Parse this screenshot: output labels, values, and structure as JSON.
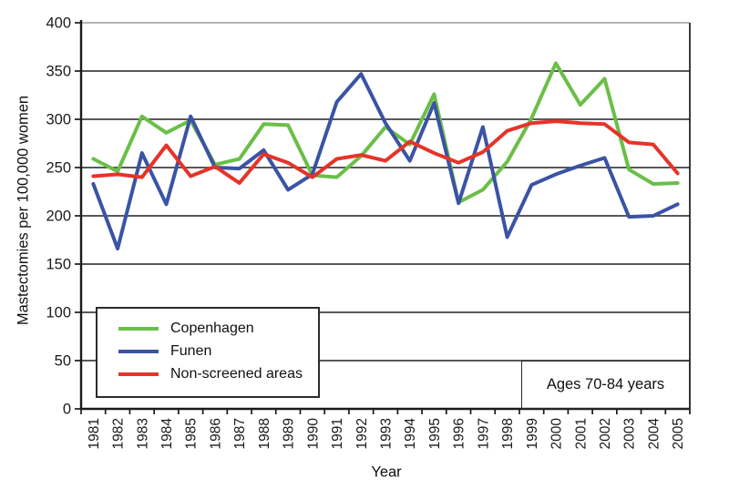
{
  "chart_data": {
    "type": "line",
    "title": "",
    "xlabel": "Year",
    "ylabel": "Mastectomies per 100,000 women",
    "annotation": "Ages 70-84 years",
    "x": [
      1981,
      1982,
      1983,
      1984,
      1985,
      1986,
      1987,
      1988,
      1989,
      1990,
      1991,
      1992,
      1993,
      1994,
      1995,
      1996,
      1997,
      1998,
      1999,
      2000,
      2001,
      2002,
      2003,
      2004,
      2005
    ],
    "y_ticks": [
      0,
      50,
      100,
      150,
      200,
      250,
      300,
      350,
      400
    ],
    "ylim": [
      0,
      400
    ],
    "grid": "horizontal",
    "legend_position": "bottom-left-inside",
    "series": [
      {
        "name": "Copenhagen",
        "color": "#6abf47",
        "values": [
          259,
          246,
          303,
          286,
          299,
          253,
          259,
          295,
          294,
          242,
          240,
          262,
          292,
          274,
          326,
          214,
          227,
          256,
          301,
          358,
          315,
          342,
          248,
          233,
          234
        ]
      },
      {
        "name": "Funen",
        "color": "#3a53a4",
        "values": [
          233,
          166,
          265,
          212,
          303,
          250,
          249,
          268,
          227,
          243,
          318,
          347,
          296,
          257,
          317,
          213,
          292,
          178,
          232,
          243,
          252,
          260,
          199,
          200,
          212
        ]
      },
      {
        "name": "Non-screened areas",
        "color": "#e63329",
        "values": [
          241,
          243,
          240,
          273,
          241,
          251,
          234,
          264,
          255,
          240,
          259,
          263,
          257,
          277,
          265,
          255,
          266,
          288,
          296,
          298,
          296,
          295,
          276,
          274,
          244
        ]
      }
    ]
  },
  "colors": {
    "axis": "#1a1a1a",
    "grid": "#404040",
    "grid_top": "#ababab",
    "background": "#ffffff"
  }
}
